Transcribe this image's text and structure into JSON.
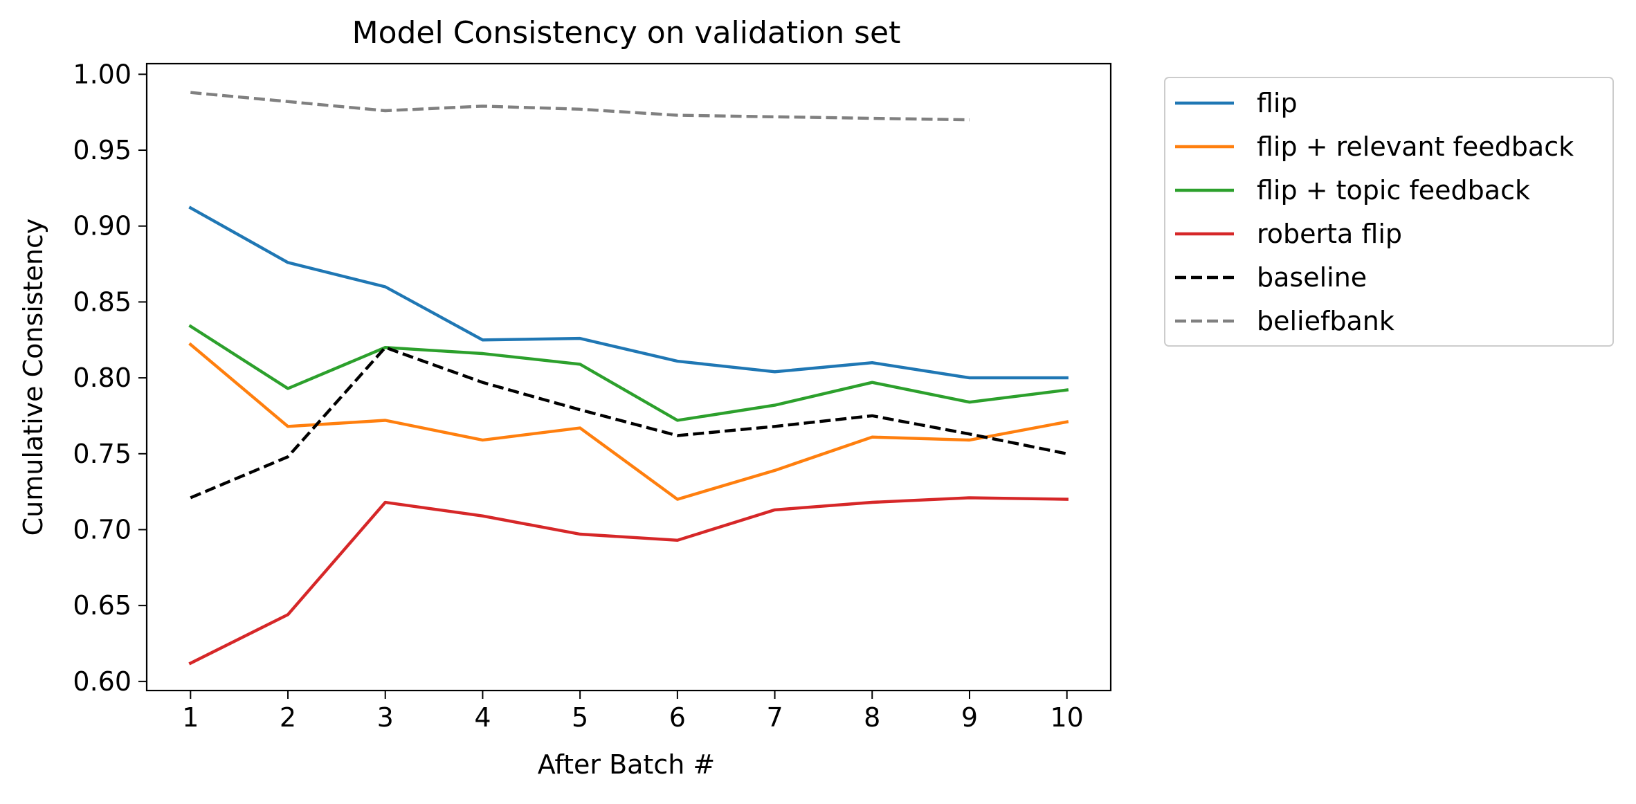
{
  "chart_data": {
    "type": "line",
    "title": "Model Consistency on validation set",
    "xlabel": "After Batch #",
    "ylabel": "Cumulative Consistency",
    "x": [
      1,
      2,
      3,
      4,
      5,
      6,
      7,
      8,
      9,
      10
    ],
    "xlim": [
      0.55,
      10.45
    ],
    "ylim": [
      0.594,
      1.007
    ],
    "xticks": [
      1,
      2,
      3,
      4,
      5,
      6,
      7,
      8,
      9,
      10
    ],
    "yticks": [
      0.6,
      0.65,
      0.7,
      0.75,
      0.8,
      0.85,
      0.9,
      0.95,
      1.0
    ],
    "ytick_labels": [
      "0.60",
      "0.65",
      "0.70",
      "0.75",
      "0.80",
      "0.85",
      "0.90",
      "0.95",
      "1.00"
    ],
    "grid": false,
    "legend_position": "outside-upper-right",
    "series": [
      {
        "name": "flip",
        "color": "#1f77b4",
        "dash": "solid",
        "values": [
          0.912,
          0.876,
          0.86,
          0.825,
          0.826,
          0.811,
          0.804,
          0.81,
          0.8,
          0.8
        ]
      },
      {
        "name": "flip + relevant feedback",
        "color": "#ff7f0e",
        "dash": "solid",
        "values": [
          0.822,
          0.768,
          0.772,
          0.759,
          0.767,
          0.72,
          0.739,
          0.761,
          0.759,
          0.771
        ]
      },
      {
        "name": "flip + topic feedback",
        "color": "#2ca02c",
        "dash": "solid",
        "values": [
          0.834,
          0.793,
          0.82,
          0.816,
          0.809,
          0.772,
          0.782,
          0.797,
          0.784,
          0.792
        ]
      },
      {
        "name": "roberta flip",
        "color": "#d62728",
        "dash": "solid",
        "values": [
          0.612,
          0.644,
          0.718,
          0.709,
          0.697,
          0.693,
          0.713,
          0.718,
          0.721,
          0.72
        ]
      },
      {
        "name": "baseline",
        "color": "#000000",
        "dash": "dashed",
        "values": [
          0.721,
          0.748,
          0.82,
          0.797,
          0.779,
          0.762,
          0.768,
          0.775,
          0.763,
          0.75
        ]
      },
      {
        "name": "beliefbank",
        "color": "#808080",
        "dash": "dashed",
        "values": [
          0.988,
          0.982,
          0.976,
          0.979,
          0.977,
          0.973,
          0.972,
          0.971,
          0.97,
          null
        ]
      }
    ]
  }
}
